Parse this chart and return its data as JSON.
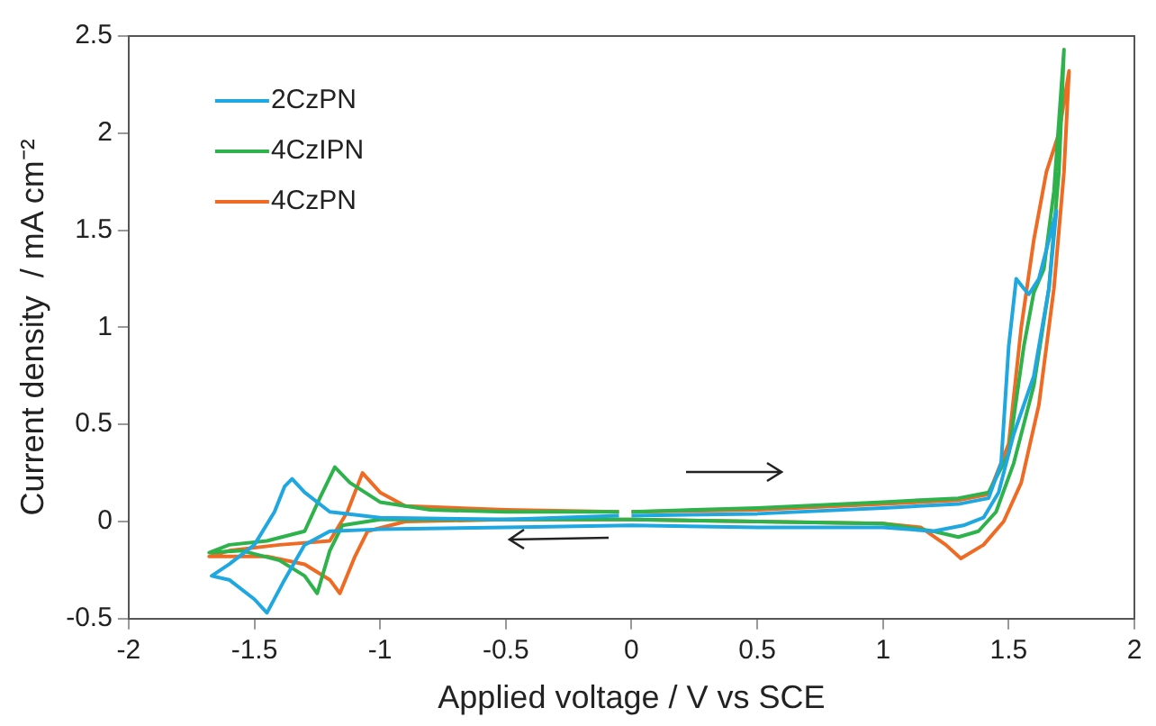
{
  "chart_data": {
    "type": "line",
    "xlabel": "Applied voltage / V vs SCE",
    "ylabel": "Current density  / mA cm⁻²",
    "xlim": [
      -2,
      2
    ],
    "xticks": [
      -2,
      -1.5,
      -1,
      -0.5,
      0,
      0.5,
      1,
      1.5,
      2
    ],
    "ylim": [
      -0.5,
      2.5
    ],
    "yticks": [
      -0.5,
      0,
      0.5,
      1,
      1.5,
      2,
      2.5
    ],
    "grid": false,
    "legend": "top left",
    "marker": "none",
    "line_style": "solid",
    "series": [
      {
        "name": "2CzPN",
        "color": "#1ea7e1",
        "x": [
          0,
          0.5,
          1,
          1.3,
          1.42,
          1.47,
          1.5,
          1.53,
          1.56,
          1.58,
          1.62,
          1.66,
          1.69,
          1.66,
          1.6,
          1.52,
          1.46,
          1.4,
          1.32,
          1.2,
          1,
          0.5,
          0,
          -0.5,
          -1,
          -1.2,
          -1.3,
          -1.38,
          -1.45,
          -1.5,
          -1.6,
          -1.67,
          -1.6,
          -1.5,
          -1.42,
          -1.38,
          -1.35,
          -1.3,
          -1.2,
          -1,
          -0.5,
          -0.05
        ],
        "values": [
          0.03,
          0.04,
          0.07,
          0.09,
          0.12,
          0.3,
          0.9,
          1.25,
          1.2,
          1.17,
          1.25,
          1.45,
          1.6,
          1.2,
          0.75,
          0.45,
          0.15,
          0.02,
          -0.02,
          -0.05,
          -0.03,
          -0.03,
          -0.02,
          -0.03,
          -0.04,
          -0.05,
          -0.12,
          -0.3,
          -0.47,
          -0.4,
          -0.3,
          -0.28,
          -0.22,
          -0.12,
          0.05,
          0.18,
          0.22,
          0.15,
          0.05,
          0.02,
          0.01,
          0.03
        ]
      },
      {
        "name": "4CzIPN",
        "color": "#2eb24b",
        "x": [
          0,
          0.5,
          1,
          1.3,
          1.42,
          1.5,
          1.56,
          1.6,
          1.64,
          1.68,
          1.72,
          1.7,
          1.66,
          1.6,
          1.52,
          1.45,
          1.38,
          1.3,
          1.2,
          1,
          0.5,
          0,
          -0.5,
          -1,
          -1.15,
          -1.2,
          -1.25,
          -1.3,
          -1.4,
          -1.55,
          -1.68,
          -1.6,
          -1.45,
          -1.3,
          -1.24,
          -1.18,
          -1.12,
          -1,
          -0.8,
          -0.5,
          -0.05
        ],
        "values": [
          0.05,
          0.07,
          0.1,
          0.12,
          0.15,
          0.35,
          0.9,
          1.18,
          1.3,
          1.7,
          2.43,
          1.8,
          1.2,
          0.7,
          0.3,
          0.05,
          -0.05,
          -0.08,
          -0.05,
          -0.01,
          0,
          0.01,
          0.01,
          0.01,
          -0.02,
          -0.15,
          -0.37,
          -0.28,
          -0.2,
          -0.15,
          -0.16,
          -0.12,
          -0.1,
          -0.05,
          0.12,
          0.28,
          0.2,
          0.1,
          0.06,
          0.05,
          0.05
        ]
      },
      {
        "name": "4CzPN",
        "color": "#ef6b23",
        "x": [
          0,
          0.5,
          1,
          1.3,
          1.42,
          1.5,
          1.55,
          1.6,
          1.65,
          1.7,
          1.74,
          1.72,
          1.68,
          1.62,
          1.55,
          1.48,
          1.4,
          1.31,
          1.25,
          1.15,
          1,
          0.5,
          0,
          -0.5,
          -0.9,
          -1.05,
          -1.1,
          -1.16,
          -1.2,
          -1.3,
          -1.45,
          -1.68,
          -1.6,
          -1.4,
          -1.2,
          -1.13,
          -1.07,
          -1,
          -0.9,
          -0.5,
          -0.05
        ],
        "values": [
          0.05,
          0.06,
          0.09,
          0.11,
          0.14,
          0.4,
          1.0,
          1.45,
          1.8,
          2.0,
          2.32,
          1.8,
          1.2,
          0.6,
          0.2,
          0,
          -0.12,
          -0.19,
          -0.12,
          -0.03,
          -0.01,
          0,
          0.01,
          0.01,
          0,
          -0.05,
          -0.18,
          -0.37,
          -0.3,
          -0.22,
          -0.18,
          -0.18,
          -0.15,
          -0.12,
          -0.1,
          0.05,
          0.25,
          0.15,
          0.08,
          0.06,
          0.05
        ]
      }
    ]
  }
}
